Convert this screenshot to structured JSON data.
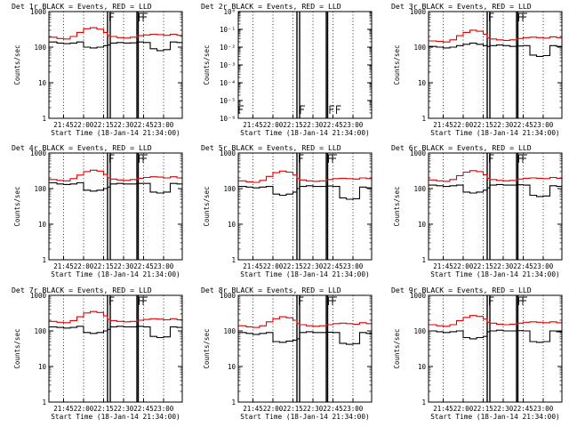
{
  "colors": {
    "events": "#000000",
    "lld": "#e00000",
    "axis": "#000000",
    "background": "#ffffff"
  },
  "chart_data": [
    {
      "type": "line",
      "title": "Det 1r BLACK = Events, RED = LLD",
      "xlabel": "Start Time (18-Jan-14 21:34:00)",
      "ylabel": "Counts/sec",
      "y_scale": "log",
      "ylim": [
        1,
        1000
      ],
      "y_ticks": [
        "1",
        "10",
        "100",
        "1000"
      ],
      "xlim": [
        "21:34",
        "23:14"
      ],
      "x_ticks": [
        "21:45",
        "22:00",
        "22:15",
        "22:30",
        "22:45",
        "23:00"
      ],
      "grid": "dotted-vertical",
      "markers": {
        "solid_lines": [
          "22:18",
          "22:20",
          "22:40",
          "22:41"
        ],
        "flags": [
          "22:19",
          "22:41",
          "22:44"
        ]
      },
      "x": [
        "21:34",
        "21:40",
        "21:45",
        "21:50",
        "21:55",
        "22:00",
        "22:05",
        "22:10",
        "22:15",
        "22:18",
        "22:20",
        "22:25",
        "22:30",
        "22:35",
        "22:40",
        "22:45",
        "22:50",
        "22:55",
        "23:00",
        "23:05",
        "23:10",
        "23:14"
      ],
      "series": [
        {
          "name": "Events",
          "values": [
            140,
            130,
            125,
            130,
            140,
            100,
            95,
            100,
            110,
            115,
            130,
            135,
            130,
            132,
            140,
            135,
            90,
            80,
            85,
            140,
            135,
            130
          ]
        },
        {
          "name": "LLD",
          "values": [
            190,
            175,
            170,
            200,
            260,
            330,
            350,
            320,
            260,
            210,
            200,
            185,
            180,
            190,
            210,
            220,
            230,
            225,
            215,
            230,
            215,
            200
          ]
        }
      ]
    },
    {
      "type": "line",
      "title": "Det 2r BLACK = Events, RED = LLD",
      "xlabel": "Start Time (18-Jan-14 21:34:00)",
      "ylabel": "Counts/sec",
      "y_scale": "log",
      "ylim": [
        1e-06,
        1
      ],
      "y_ticks": [
        "10⁻⁶",
        "10⁻⁵",
        "10⁻⁴",
        "10⁻³",
        "10⁻²",
        "10⁻¹",
        "10⁰"
      ],
      "xlim": [
        "21:34",
        "23:14"
      ],
      "x_ticks": [
        "21:45",
        "22:00",
        "22:15",
        "22:30",
        "22:45",
        "23:00"
      ],
      "grid": "dotted-vertical",
      "markers": {
        "solid_lines": [
          "22:18",
          "22:20",
          "22:40",
          "22:41"
        ],
        "flags": [
          "21:34",
          "22:20",
          "22:42",
          "22:47"
        ]
      },
      "x": [],
      "series": []
    },
    {
      "type": "line",
      "title": "Det 3r BLACK = Events, RED = LLD",
      "xlabel": "Start Time (18-Jan-14 21:34:00)",
      "ylabel": "Counts/sec",
      "y_scale": "log",
      "ylim": [
        1,
        1000
      ],
      "y_ticks": [
        "1",
        "10",
        "100",
        "1000"
      ],
      "xlim": [
        "21:34",
        "23:14"
      ],
      "x_ticks": [
        "21:45",
        "22:00",
        "22:15",
        "22:30",
        "22:45",
        "23:00"
      ],
      "grid": "dotted-vertical",
      "markers": {
        "solid_lines": [
          "22:18",
          "22:20",
          "22:40",
          "22:41"
        ],
        "flags": [
          "22:19",
          "22:41",
          "22:44"
        ]
      },
      "x": [
        "21:34",
        "21:40",
        "21:45",
        "21:50",
        "21:55",
        "22:00",
        "22:05",
        "22:10",
        "22:15",
        "22:18",
        "22:20",
        "22:25",
        "22:30",
        "22:35",
        "22:40",
        "22:45",
        "22:50",
        "22:55",
        "23:00",
        "23:05",
        "23:10",
        "23:14"
      ],
      "series": [
        {
          "name": "Events",
          "values": [
            105,
            100,
            95,
            100,
            110,
            120,
            130,
            120,
            110,
            105,
            110,
            115,
            110,
            105,
            108,
            110,
            60,
            55,
            58,
            110,
            105,
            100
          ]
        },
        {
          "name": "LLD",
          "values": [
            150,
            145,
            140,
            160,
            210,
            260,
            300,
            280,
            230,
            180,
            170,
            160,
            155,
            160,
            175,
            185,
            190,
            185,
            180,
            195,
            185,
            170
          ]
        }
      ]
    },
    {
      "type": "line",
      "title": "Det 4r BLACK = Events, RED = LLD",
      "xlabel": "Start Time (18-Jan-14 21:34:00)",
      "ylabel": "Counts/sec",
      "y_scale": "log",
      "ylim": [
        1,
        1000
      ],
      "y_ticks": [
        "1",
        "10",
        "100",
        "1000"
      ],
      "xlim": [
        "21:34",
        "23:14"
      ],
      "x_ticks": [
        "21:45",
        "22:00",
        "22:15",
        "22:30",
        "22:45",
        "23:00"
      ],
      "grid": "dotted-vertical",
      "markers": {
        "solid_lines": [
          "22:18",
          "22:20",
          "22:40",
          "22:41"
        ],
        "flags": [
          "22:19",
          "22:41",
          "22:44"
        ]
      },
      "x": [
        "21:34",
        "21:40",
        "21:45",
        "21:50",
        "21:55",
        "22:00",
        "22:05",
        "22:10",
        "22:15",
        "22:18",
        "22:20",
        "22:25",
        "22:30",
        "22:35",
        "22:40",
        "22:45",
        "22:50",
        "22:55",
        "23:00",
        "23:05",
        "23:10",
        "23:14"
      ],
      "series": [
        {
          "name": "Events",
          "values": [
            145,
            135,
            130,
            135,
            145,
            90,
            85,
            90,
            100,
            110,
            135,
            140,
            135,
            135,
            140,
            140,
            80,
            75,
            80,
            140,
            135,
            130
          ]
        },
        {
          "name": "LLD",
          "values": [
            180,
            170,
            165,
            190,
            240,
            300,
            330,
            310,
            250,
            200,
            185,
            175,
            170,
            180,
            195,
            205,
            215,
            210,
            200,
            215,
            200,
            190
          ]
        }
      ]
    },
    {
      "type": "line",
      "title": "Det 5r BLACK = Events, RED = LLD",
      "xlabel": "Start Time (18-Jan-14 21:34:00)",
      "ylabel": "Counts/sec",
      "y_scale": "log",
      "ylim": [
        1,
        1000
      ],
      "y_ticks": [
        "1",
        "10",
        "100",
        "1000"
      ],
      "xlim": [
        "21:34",
        "23:14"
      ],
      "x_ticks": [
        "21:45",
        "22:00",
        "22:15",
        "22:30",
        "22:45",
        "23:00"
      ],
      "grid": "dotted-vertical",
      "markers": {
        "solid_lines": [
          "22:18",
          "22:20",
          "22:40",
          "22:41"
        ],
        "flags": [
          "22:19",
          "22:41",
          "22:44"
        ]
      },
      "x": [
        "21:34",
        "21:40",
        "21:45",
        "21:50",
        "21:55",
        "22:00",
        "22:05",
        "22:10",
        "22:15",
        "22:18",
        "22:20",
        "22:25",
        "22:30",
        "22:35",
        "22:40",
        "22:45",
        "22:50",
        "22:55",
        "23:00",
        "23:05",
        "23:10",
        "23:14"
      ],
      "series": [
        {
          "name": "Events",
          "values": [
            115,
            110,
            105,
            110,
            115,
            70,
            65,
            70,
            80,
            100,
            115,
            120,
            115,
            115,
            118,
            115,
            55,
            50,
            52,
            110,
            105,
            100
          ]
        },
        {
          "name": "LLD",
          "values": [
            165,
            155,
            150,
            170,
            220,
            280,
            310,
            290,
            240,
            190,
            175,
            165,
            160,
            165,
            180,
            190,
            195,
            190,
            185,
            200,
            190,
            175
          ]
        }
      ]
    },
    {
      "type": "line",
      "title": "Det 6r BLACK = Events, RED = LLD",
      "xlabel": "Start Time (18-Jan-14 21:34:00)",
      "ylabel": "Counts/sec",
      "y_scale": "log",
      "ylim": [
        1,
        1000
      ],
      "y_ticks": [
        "1",
        "10",
        "100",
        "1000"
      ],
      "xlim": [
        "21:34",
        "23:14"
      ],
      "x_ticks": [
        "21:45",
        "22:00",
        "22:15",
        "22:30",
        "22:45",
        "23:00"
      ],
      "grid": "dotted-vertical",
      "markers": {
        "solid_lines": [
          "22:18",
          "22:20",
          "22:40",
          "22:41"
        ],
        "flags": [
          "22:19",
          "22:41",
          "22:44"
        ]
      },
      "x": [
        "21:34",
        "21:40",
        "21:45",
        "21:50",
        "21:55",
        "22:00",
        "22:05",
        "22:10",
        "22:15",
        "22:18",
        "22:20",
        "22:25",
        "22:30",
        "22:35",
        "22:40",
        "22:45",
        "22:50",
        "22:55",
        "23:00",
        "23:05",
        "23:10",
        "23:14"
      ],
      "series": [
        {
          "name": "Events",
          "values": [
            125,
            120,
            115,
            120,
            125,
            80,
            75,
            80,
            90,
            105,
            125,
            130,
            125,
            125,
            128,
            125,
            65,
            60,
            62,
            120,
            115,
            110
          ]
        },
        {
          "name": "LLD",
          "values": [
            175,
            165,
            160,
            180,
            230,
            290,
            320,
            300,
            245,
            195,
            180,
            170,
            165,
            170,
            185,
            195,
            200,
            195,
            190,
            205,
            195,
            180
          ]
        }
      ]
    },
    {
      "type": "line",
      "title": "Det 7r BLACK = Events, RED = LLD",
      "xlabel": "Start Time (18-Jan-14 21:34:00)",
      "ylabel": "Counts/sec",
      "y_scale": "log",
      "ylim": [
        1,
        1000
      ],
      "y_ticks": [
        "1",
        "10",
        "100",
        "1000"
      ],
      "xlim": [
        "21:34",
        "23:14"
      ],
      "x_ticks": [
        "21:45",
        "22:00",
        "22:15",
        "22:30",
        "22:45",
        "23:00"
      ],
      "grid": "dotted-vertical",
      "markers": {
        "solid_lines": [
          "22:18",
          "22:20",
          "22:40",
          "22:41"
        ],
        "flags": [
          "22:19",
          "22:41",
          "22:44"
        ]
      },
      "x": [
        "21:34",
        "21:40",
        "21:45",
        "21:50",
        "21:55",
        "22:00",
        "22:05",
        "22:10",
        "22:15",
        "22:18",
        "22:20",
        "22:25",
        "22:30",
        "22:35",
        "22:40",
        "22:45",
        "22:50",
        "22:55",
        "23:00",
        "23:05",
        "23:10",
        "23:14"
      ],
      "series": [
        {
          "name": "Events",
          "values": [
            130,
            125,
            120,
            125,
            135,
            90,
            85,
            90,
            100,
            110,
            130,
            135,
            130,
            130,
            135,
            130,
            70,
            65,
            68,
            130,
            125,
            120
          ]
        },
        {
          "name": "LLD",
          "values": [
            185,
            175,
            170,
            195,
            250,
            320,
            350,
            330,
            265,
            210,
            195,
            185,
            180,
            185,
            200,
            210,
            220,
            215,
            205,
            220,
            205,
            190
          ]
        }
      ]
    },
    {
      "type": "line",
      "title": "Det 8r BLACK = Events, RED = LLD",
      "xlabel": "Start Time (18-Jan-14 21:34:00)",
      "ylabel": "Counts/sec",
      "y_scale": "log",
      "ylim": [
        1,
        1000
      ],
      "y_ticks": [
        "1",
        "10",
        "100",
        "1000"
      ],
      "xlim": [
        "21:34",
        "23:14"
      ],
      "x_ticks": [
        "21:45",
        "22:00",
        "22:15",
        "22:30",
        "22:45",
        "23:00"
      ],
      "grid": "dotted-vertical",
      "markers": {
        "solid_lines": [
          "22:18",
          "22:20",
          "22:40",
          "22:41"
        ],
        "flags": [
          "22:19",
          "22:41",
          "22:44"
        ]
      },
      "x": [
        "21:34",
        "21:40",
        "21:45",
        "21:50",
        "21:55",
        "22:00",
        "22:05",
        "22:10",
        "22:15",
        "22:18",
        "22:20",
        "22:25",
        "22:30",
        "22:35",
        "22:40",
        "22:45",
        "22:50",
        "22:55",
        "23:00",
        "23:05",
        "23:10",
        "23:14"
      ],
      "series": [
        {
          "name": "Events",
          "values": [
            90,
            85,
            80,
            85,
            90,
            50,
            48,
            52,
            55,
            60,
            90,
            95,
            90,
            90,
            92,
            90,
            45,
            42,
            44,
            90,
            85,
            80
          ]
        },
        {
          "name": "LLD",
          "values": [
            140,
            130,
            125,
            140,
            180,
            220,
            250,
            235,
            200,
            160,
            150,
            140,
            135,
            140,
            150,
            160,
            165,
            160,
            155,
            170,
            160,
            150
          ]
        }
      ]
    },
    {
      "type": "line",
      "title": "Det 9r BLACK = Events, RED = LLD",
      "xlabel": "Start Time (18-Jan-14 21:34:00)",
      "ylabel": "Counts/sec",
      "y_scale": "log",
      "ylim": [
        1,
        1000
      ],
      "y_ticks": [
        "1",
        "10",
        "100",
        "1000"
      ],
      "xlim": [
        "21:34",
        "23:14"
      ],
      "x_ticks": [
        "21:45",
        "22:00",
        "22:15",
        "22:30",
        "22:45",
        "23:00"
      ],
      "grid": "dotted-vertical",
      "markers": {
        "solid_lines": [
          "22:18",
          "22:20",
          "22:40",
          "22:41"
        ],
        "flags": [
          "22:19",
          "22:41",
          "22:44"
        ]
      },
      "x": [
        "21:34",
        "21:40",
        "21:45",
        "21:50",
        "21:55",
        "22:00",
        "22:05",
        "22:10",
        "22:15",
        "22:18",
        "22:20",
        "22:25",
        "22:30",
        "22:35",
        "22:40",
        "22:45",
        "22:50",
        "22:55",
        "23:00",
        "23:05",
        "23:10",
        "23:14"
      ],
      "series": [
        {
          "name": "Events",
          "values": [
            100,
            95,
            90,
            95,
            100,
            65,
            60,
            65,
            70,
            95,
            100,
            105,
            100,
            100,
            102,
            100,
            50,
            48,
            50,
            100,
            95,
            90
          ]
        },
        {
          "name": "LLD",
          "values": [
            150,
            140,
            135,
            150,
            195,
            240,
            270,
            255,
            215,
            175,
            165,
            155,
            150,
            155,
            165,
            175,
            180,
            175,
            170,
            180,
            170,
            160
          ]
        }
      ]
    }
  ]
}
